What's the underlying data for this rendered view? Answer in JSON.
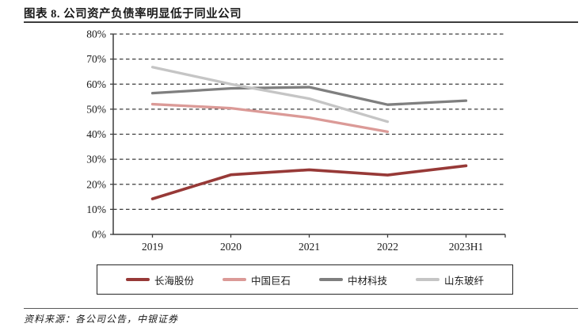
{
  "figure": {
    "title": "图表 8. 公司资产负债率明显低于同业公司",
    "source": "资料来源：各公司公告，中银证券"
  },
  "chart_data": {
    "type": "line",
    "title": "公司资产负债率明显低于同业公司",
    "categories": [
      "2019",
      "2020",
      "2021",
      "2022",
      "2023H1"
    ],
    "series": [
      {
        "name": "长海股份",
        "color": "#973937",
        "line_width": 3.6,
        "values": [
          14.2,
          23.8,
          25.8,
          23.7,
          27.4
        ]
      },
      {
        "name": "中国巨石",
        "color": "#DB9A97",
        "line_width": 3.3,
        "values": [
          52.0,
          50.4,
          46.6,
          41.0,
          null
        ]
      },
      {
        "name": "中材科技",
        "color": "#7F7F7F",
        "line_width": 3.3,
        "values": [
          56.4,
          58.3,
          58.8,
          51.8,
          53.4
        ]
      },
      {
        "name": "山东玻纤",
        "color": "#C5C5C5",
        "line_width": 3.3,
        "values": [
          66.8,
          60.0,
          54.2,
          45.0,
          null
        ]
      }
    ],
    "xlabel": "",
    "ylabel": "",
    "ylim": [
      0,
      80
    ],
    "ytick_step": 10,
    "yticks": [
      "0%",
      "10%",
      "20%",
      "30%",
      "40%",
      "50%",
      "60%",
      "70%",
      "80%"
    ],
    "unit": "percent",
    "grid": "dashed-horizontal",
    "legend_position": "bottom-boxed",
    "axis_color": "#3d3d3d",
    "grid_color": "#3d3d3d",
    "tick_label_color": "#1a1a1a"
  }
}
